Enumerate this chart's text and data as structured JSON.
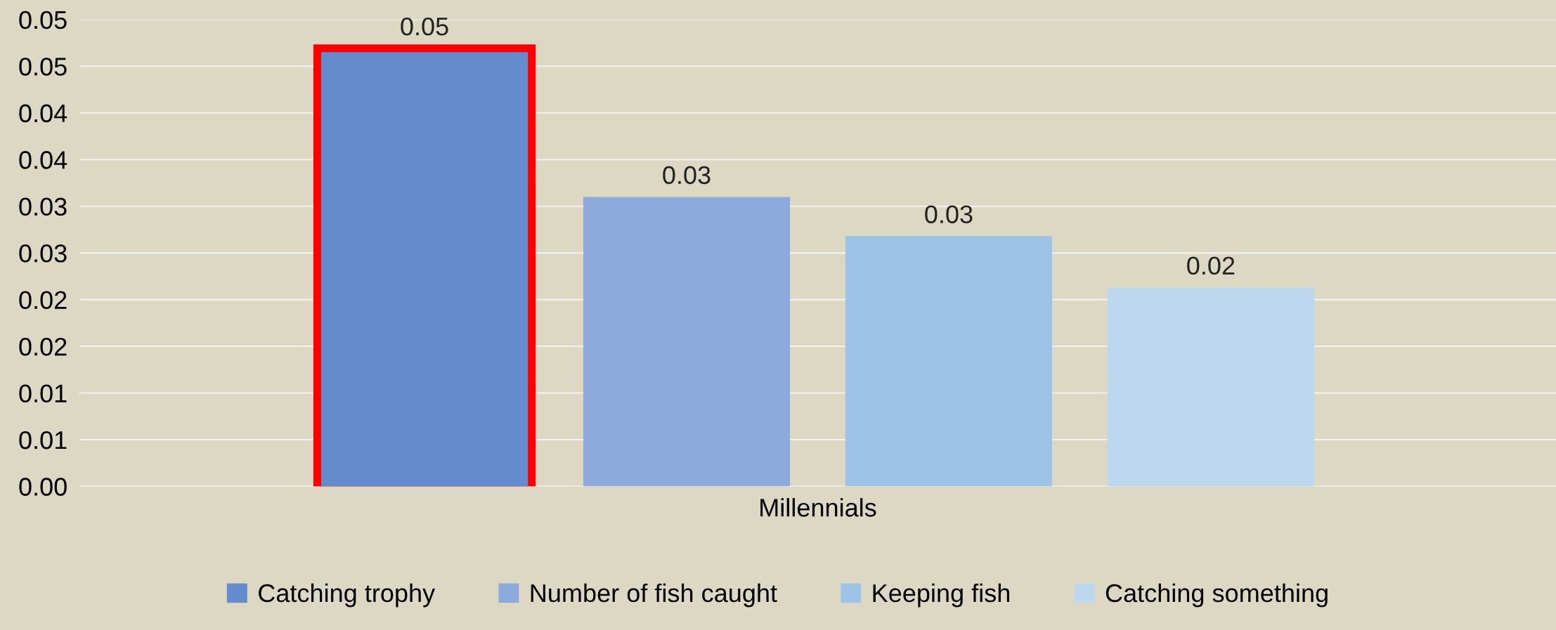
{
  "chart_data": {
    "type": "bar",
    "categories": [
      "Millennials"
    ],
    "series": [
      {
        "name": "Catching trophy",
        "color": "#658bcf",
        "values": [
          0.0465
        ],
        "value_labels": [
          "0.05"
        ]
      },
      {
        "name": "Number of fish caught",
        "color": "#8eaadc",
        "values": [
          0.031
        ],
        "value_labels": [
          "0.03"
        ]
      },
      {
        "name": "Keeping fish",
        "color": "#9dc3e6",
        "values": [
          0.0268
        ],
        "value_labels": [
          "0.03"
        ]
      },
      {
        "name": "Catching something",
        "color": "#bdd7ee",
        "values": [
          0.0213
        ],
        "value_labels": [
          "0.02"
        ]
      }
    ],
    "ylim": [
      0,
      0.05
    ],
    "yticks": [
      {
        "value": 0,
        "label": "0.00"
      },
      {
        "value": 0.005,
        "label": "0.01"
      },
      {
        "value": 0.01,
        "label": "0.01"
      },
      {
        "value": 0.015,
        "label": "0.02"
      },
      {
        "value": 0.02,
        "label": "0.02"
      },
      {
        "value": 0.025,
        "label": "0.03"
      },
      {
        "value": 0.03,
        "label": "0.03"
      },
      {
        "value": 0.035,
        "label": "0.04"
      },
      {
        "value": 0.04,
        "label": "0.04"
      },
      {
        "value": 0.045,
        "label": "0.05"
      },
      {
        "value": 0.05,
        "label": "0.05"
      }
    ],
    "grid": "y",
    "legend": "bottom"
  }
}
